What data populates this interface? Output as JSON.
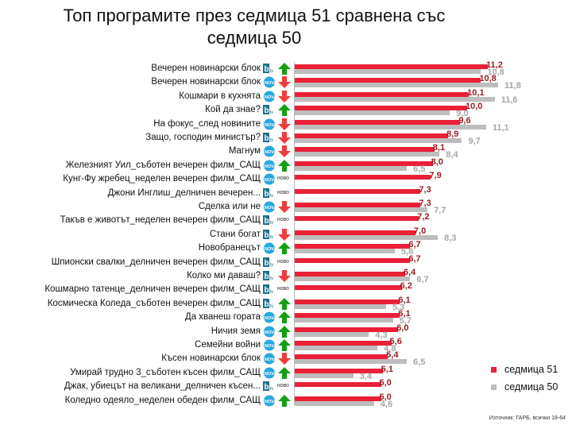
{
  "chart_data": {
    "type": "bar",
    "orientation": "horizontal",
    "title": "Топ програмите през седмица 51 сравнена със седмица 50",
    "xlim": [
      0,
      12
    ],
    "series": [
      {
        "name": "седмица 51",
        "color": "#ea1f38",
        "values": [
          11.2,
          10.8,
          10.1,
          10.0,
          9.6,
          8.9,
          8.1,
          8.0,
          7.9,
          7.3,
          7.3,
          7.2,
          7.0,
          6.7,
          6.7,
          6.4,
          6.2,
          6.1,
          6.1,
          6.0,
          5.6,
          5.4,
          5.1,
          5.0,
          5.0
        ]
      },
      {
        "name": "седмица 50",
        "color": "#bdbdbd",
        "values": [
          10.8,
          11.8,
          11.6,
          9.0,
          11.1,
          9.7,
          8.4,
          6.5,
          null,
          null,
          7.7,
          null,
          8.3,
          5.8,
          null,
          6.7,
          null,
          5.3,
          5.7,
          4.3,
          4.8,
          6.5,
          3.4,
          null,
          4.6
        ]
      }
    ],
    "categories": [
      "Вечерен новинарски блок",
      "Вечерен новинарски блок",
      "Кошмари в кухнята",
      "Кой да знае?",
      "На фокус_след новините",
      "Защо, господин министър?",
      "Магнум",
      "Железният Уил_съботен вечерен филм_САЩ",
      "Кунг-Фу жребец_неделен вечерен филм_САЩ",
      "Джони Инглиш_делничен вечерен...",
      "Сделка или не",
      "Такъв е животът_неделен вечерен филм_САЩ",
      "Стани богат",
      "Новобранецът",
      "Шпионски свалки_делничен вечерен филм_САЩ",
      "Колко ми даваш?",
      "Кошмарно татенце_делничен вечерен филм_САЩ",
      "Космическа Коледа_съботен вечерен филм_САЩ",
      "Да хванеш гората",
      "Ничия земя",
      "Семейни войни",
      "Късен новинарски блок",
      "Умирай трудно 3_съботен късен филм_САЩ",
      "Джак, убиецът на великани_делничен късен...",
      "Коледно одеяло_неделен обеден филм_САЩ"
    ],
    "channels": [
      "btv",
      "nova",
      "nova",
      "btv",
      "nova",
      "btv",
      "nova",
      "nova",
      "nova",
      "btv",
      "nova",
      "btv",
      "btv",
      "nova",
      "btv",
      "btv",
      "btv",
      "btv",
      "nova",
      "nova",
      "nova",
      "nova",
      "nova",
      "btv",
      "nova"
    ],
    "trend": [
      "up",
      "down",
      "down",
      "up",
      "down",
      "down",
      "down",
      "up",
      "new",
      "new",
      "down",
      "new",
      "down",
      "up",
      "new",
      "down",
      "new",
      "up",
      "up",
      "up",
      "up",
      "down",
      "up",
      "new",
      "up"
    ],
    "new_label": "НОВО",
    "source": "Източник: ГАРБ, всички 18-64"
  }
}
